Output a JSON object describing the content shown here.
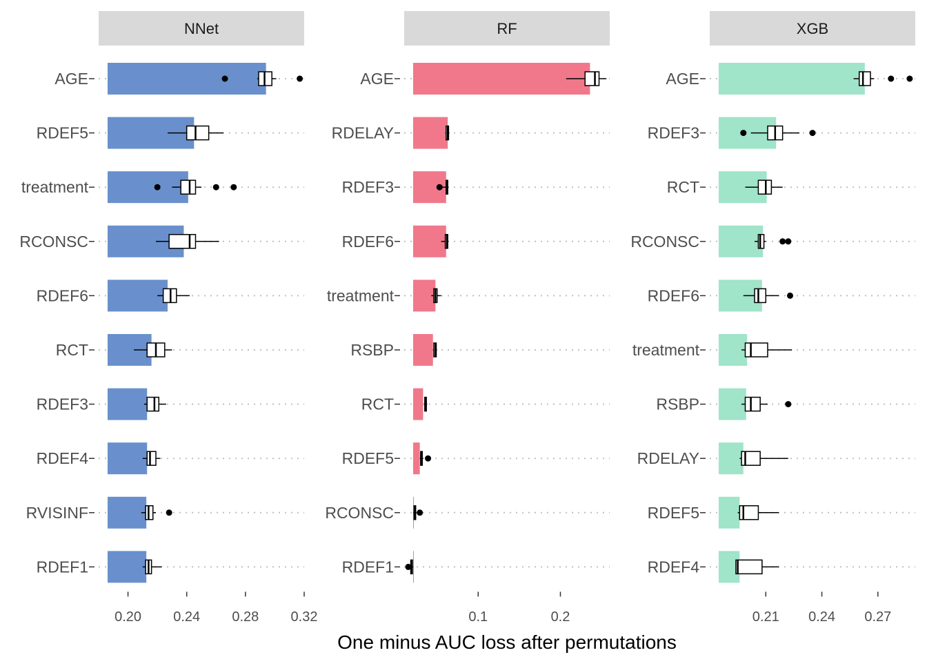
{
  "chart_data": {
    "type": "bar",
    "xlabel": "One minus AUC loss after permutations",
    "ylabel": "",
    "grid": "dotted horizontal guides per variable",
    "panels": [
      {
        "name": "NNet",
        "color": "#6990CC",
        "xlim": [
          0.18,
          0.32
        ],
        "ticks": [
          0.2,
          0.24,
          0.28,
          0.32
        ],
        "tick_labels": [
          "0.20",
          "0.24",
          "0.28",
          "0.32"
        ],
        "categories": [
          "AGE",
          "RDEF5",
          "treatment",
          "RCONSC",
          "RDEF6",
          "RCT",
          "RDEF3",
          "RDEF4",
          "RVISINF",
          "RDEF1"
        ],
        "values": [
          0.294,
          0.245,
          0.241,
          0.238,
          0.227,
          0.216,
          0.213,
          0.213,
          0.2125,
          0.2125
        ],
        "boxplots": [
          {
            "whisker_low": 0.288,
            "q1": 0.289,
            "median": 0.293,
            "q3": 0.298,
            "whisker_high": 0.301,
            "outliers": [
              0.266,
              0.317
            ]
          },
          {
            "whisker_low": 0.227,
            "q1": 0.24,
            "median": 0.246,
            "q3": 0.255,
            "whisker_high": 0.265,
            "outliers": []
          },
          {
            "whisker_low": 0.23,
            "q1": 0.236,
            "median": 0.242,
            "q3": 0.246,
            "whisker_high": 0.25,
            "outliers": [
              0.22,
              0.26,
              0.272
            ]
          },
          {
            "whisker_low": 0.219,
            "q1": 0.228,
            "median": 0.242,
            "q3": 0.246,
            "whisker_high": 0.262,
            "outliers": []
          },
          {
            "whisker_low": 0.22,
            "q1": 0.224,
            "median": 0.229,
            "q3": 0.233,
            "whisker_high": 0.242,
            "outliers": []
          },
          {
            "whisker_low": 0.204,
            "q1": 0.213,
            "median": 0.219,
            "q3": 0.225,
            "whisker_high": 0.23,
            "outliers": []
          },
          {
            "whisker_low": 0.211,
            "q1": 0.213,
            "median": 0.218,
            "q3": 0.221,
            "whisker_high": 0.226,
            "outliers": []
          },
          {
            "whisker_low": 0.21,
            "q1": 0.213,
            "median": 0.215,
            "q3": 0.219,
            "whisker_high": 0.222,
            "outliers": []
          },
          {
            "whisker_low": 0.209,
            "q1": 0.212,
            "median": 0.214,
            "q3": 0.217,
            "whisker_high": 0.219,
            "outliers": [
              0.228
            ]
          },
          {
            "whisker_low": 0.21,
            "q1": 0.212,
            "median": 0.214,
            "q3": 0.216,
            "whisker_high": 0.223,
            "outliers": []
          }
        ]
      },
      {
        "name": "RF",
        "color": "#F0788A",
        "xlim": [
          0.01,
          0.26
        ],
        "ticks": [
          0.1,
          0.2
        ],
        "tick_labels": [
          "0.1",
          "0.2"
        ],
        "categories": [
          "AGE",
          "RDELAY",
          "RDEF3",
          "RDEF6",
          "treatment",
          "RSBP",
          "RCT",
          "RDEF5",
          "RCONSC",
          "RDEF1"
        ],
        "values": [
          0.236,
          0.063,
          0.061,
          0.061,
          0.048,
          0.045,
          0.033,
          0.029,
          0.021,
          0.019
        ],
        "boxplots": [
          {
            "whisker_low": 0.207,
            "q1": 0.23,
            "median": 0.242,
            "q3": 0.247,
            "whisker_high": 0.256,
            "outliers": []
          },
          {
            "whisker_low": 0.06,
            "q1": 0.061,
            "median": 0.063,
            "q3": 0.064,
            "whisker_high": 0.065,
            "outliers": []
          },
          {
            "whisker_low": 0.056,
            "q1": 0.061,
            "median": 0.062,
            "q3": 0.063,
            "whisker_high": 0.064,
            "outliers": [
              0.053
            ]
          },
          {
            "whisker_low": 0.055,
            "q1": 0.06,
            "median": 0.062,
            "q3": 0.063,
            "whisker_high": 0.064,
            "outliers": []
          },
          {
            "whisker_low": 0.043,
            "q1": 0.046,
            "median": 0.048,
            "q3": 0.05,
            "whisker_high": 0.055,
            "outliers": []
          },
          {
            "whisker_low": 0.045,
            "q1": 0.046,
            "median": 0.048,
            "q3": 0.049,
            "whisker_high": 0.05,
            "outliers": []
          },
          {
            "whisker_low": 0.034,
            "q1": 0.035,
            "median": 0.036,
            "q3": 0.037,
            "whisker_high": 0.038,
            "outliers": []
          },
          {
            "whisker_low": 0.029,
            "q1": 0.03,
            "median": 0.031,
            "q3": 0.032,
            "whisker_high": 0.033,
            "outliers": [
              0.039
            ]
          },
          {
            "whisker_low": 0.021,
            "q1": 0.022,
            "median": 0.023,
            "q3": 0.024,
            "whisker_high": 0.025,
            "outliers": [
              0.029
            ]
          },
          {
            "whisker_low": 0.017,
            "q1": 0.018,
            "median": 0.019,
            "q3": 0.02,
            "whisker_high": 0.021,
            "outliers": [
              0.015
            ]
          }
        ]
      },
      {
        "name": "XGB",
        "color": "#A0E4CA",
        "xlim": [
          0.18,
          0.29
        ],
        "ticks": [
          0.21,
          0.24,
          0.27
        ],
        "tick_labels": [
          "0.21",
          "0.24",
          "0.27"
        ],
        "categories": [
          "AGE",
          "RDEF3",
          "RCT",
          "RCONSC",
          "RDEF6",
          "treatment",
          "RSBP",
          "RDELAY",
          "RDEF5",
          "RDEF4"
        ],
        "values": [
          0.263,
          0.2155,
          0.2105,
          0.2085,
          0.208,
          0.2,
          0.1995,
          0.198,
          0.196,
          0.196
        ],
        "boxplots": [
          {
            "whisker_low": 0.257,
            "q1": 0.26,
            "median": 0.262,
            "q3": 0.266,
            "whisker_high": 0.268,
            "outliers": [
              0.277,
              0.287
            ]
          },
          {
            "whisker_low": 0.202,
            "q1": 0.211,
            "median": 0.215,
            "q3": 0.219,
            "whisker_high": 0.228,
            "outliers": [
              0.198,
              0.235
            ]
          },
          {
            "whisker_low": 0.199,
            "q1": 0.206,
            "median": 0.21,
            "q3": 0.213,
            "whisker_high": 0.219,
            "outliers": []
          },
          {
            "whisker_low": 0.204,
            "q1": 0.206,
            "median": 0.207,
            "q3": 0.209,
            "whisker_high": 0.21,
            "outliers": [
              0.219,
              0.222
            ]
          },
          {
            "whisker_low": 0.198,
            "q1": 0.204,
            "median": 0.206,
            "q3": 0.21,
            "whisker_high": 0.217,
            "outliers": [
              0.223
            ]
          },
          {
            "whisker_low": 0.197,
            "q1": 0.199,
            "median": 0.202,
            "q3": 0.211,
            "whisker_high": 0.224,
            "outliers": []
          },
          {
            "whisker_low": 0.197,
            "q1": 0.199,
            "median": 0.202,
            "q3": 0.207,
            "whisker_high": 0.211,
            "outliers": [
              0.222
            ]
          },
          {
            "whisker_low": 0.196,
            "q1": 0.197,
            "median": 0.199,
            "q3": 0.207,
            "whisker_high": 0.222,
            "outliers": []
          },
          {
            "whisker_low": 0.195,
            "q1": 0.196,
            "median": 0.198,
            "q3": 0.206,
            "whisker_high": 0.217,
            "outliers": []
          },
          {
            "whisker_low": 0.194,
            "q1": 0.194,
            "median": 0.195,
            "q3": 0.208,
            "whisker_high": 0.217,
            "outliers": []
          }
        ]
      }
    ]
  }
}
